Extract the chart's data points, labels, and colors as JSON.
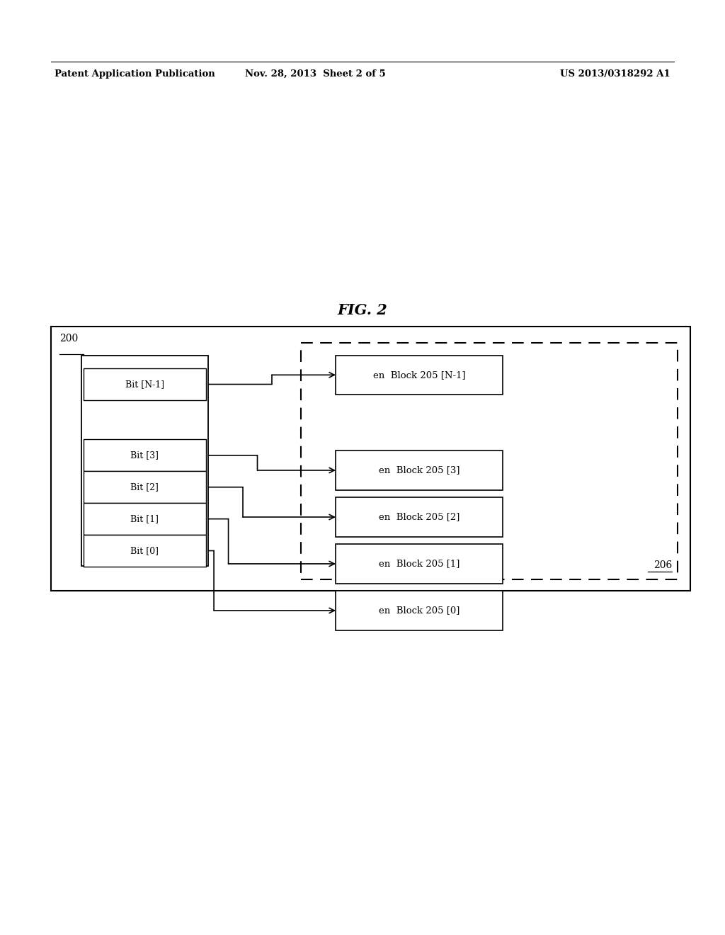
{
  "fig_width": 10.24,
  "fig_height": 13.2,
  "bg_color": "#ffffff",
  "header_text_left": "Patent Application Publication",
  "header_text_mid": "Nov. 28, 2013  Sheet 2 of 5",
  "header_text_right": "US 2013/0318292 A1",
  "fig_label": "FIG. 2",
  "outer_label": "200",
  "dashed_label": "206",
  "bit_row_labels": [
    "Bit [N-1]",
    "Bit [3]",
    "Bit [2]",
    "Bit [1]",
    "Bit [0]"
  ],
  "block_labels": [
    "en  Block 205 [N-1]",
    "en  Block 205 [3]",
    "en  Block 205 [2]",
    "en  Block 205 [1]",
    "en  Block 205 [0]"
  ]
}
